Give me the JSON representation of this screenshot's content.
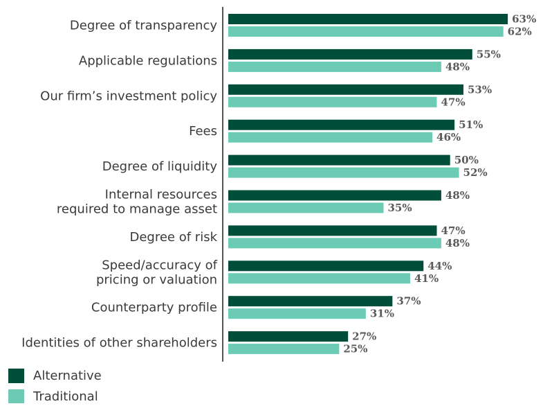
{
  "chart_data": {
    "type": "bar",
    "orientation": "horizontal",
    "categories": [
      "Degree of transparency",
      "Applicable regulations",
      "Our firm’s investment policy",
      "Fees",
      "Degree of liquidity",
      "Internal resources\nrequired to manage asset",
      "Degree of risk",
      "Speed/accuracy of\npricing or valuation",
      "Counterparty profile",
      "Identities of other shareholders"
    ],
    "series": [
      {
        "name": "Alternative",
        "color": "#004d3a",
        "values": [
          63,
          55,
          53,
          51,
          50,
          48,
          47,
          44,
          37,
          27
        ],
        "value_labels": [
          "63%",
          "55%",
          "53%",
          "51%",
          "50%",
          "48%",
          "47%",
          "44%",
          "37%",
          "27%"
        ]
      },
      {
        "name": "Traditional",
        "color": "#6ccbb5",
        "values": [
          62,
          48,
          47,
          46,
          52,
          35,
          48,
          41,
          31,
          25
        ],
        "value_labels": [
          "62%",
          "48%",
          "47%",
          "46%",
          "52%",
          "35%",
          "48%",
          "41%",
          "31%",
          "25%"
        ]
      }
    ],
    "xlim": [
      0,
      70
    ],
    "legend": "bottom-left"
  }
}
